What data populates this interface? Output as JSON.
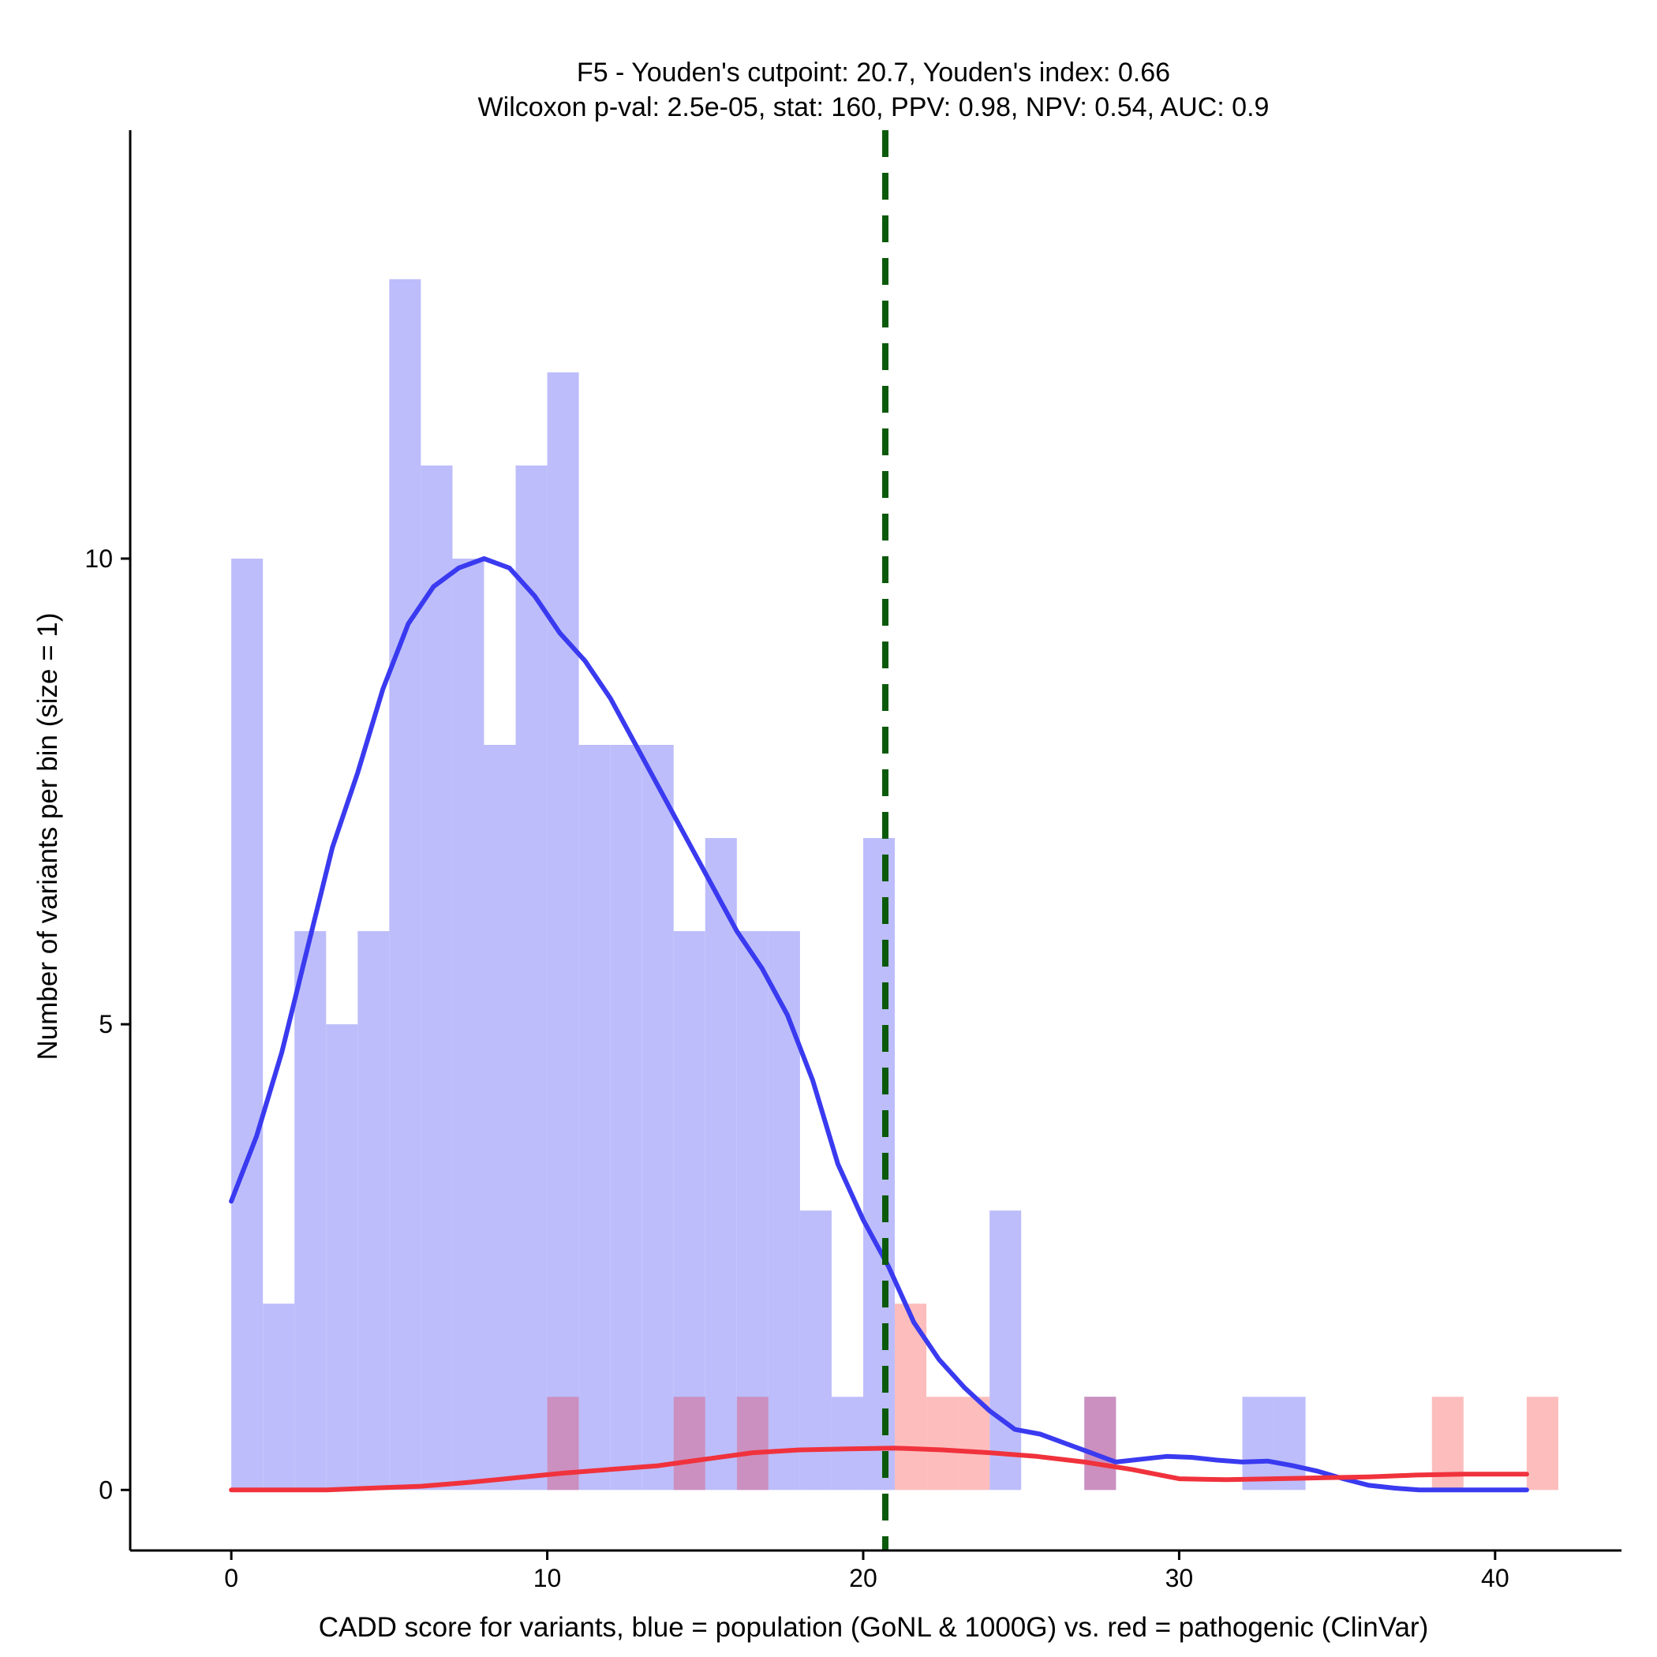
{
  "chart_data": {
    "type": "histogram",
    "title_line1": "F5 - Youden's cutpoint: 20.7, Youden's index: 0.66",
    "title_line2": "Wilcoxon p-val: 2.5e-05, stat: 160, PPV: 0.98, NPV: 0.54, AUC: 0.9",
    "xlabel": "CADD score for variants, blue = population (GoNL & 1000G) vs. red = pathogenic (ClinVar)",
    "ylabel": "Number of variants per bin (size = 1)",
    "xlim": [
      -3.2,
      44
    ],
    "ylim": [
      -0.65,
      14.6
    ],
    "xticks": [
      0,
      10,
      20,
      30,
      40
    ],
    "yticks": [
      0,
      5,
      10
    ],
    "bin_size": 1,
    "cutpoint": 20.7,
    "colors": {
      "population_fill": "#bdbdfb",
      "pathogenic_fill": "#fdbdbd",
      "overlap_fill": "#cb90c0",
      "population_kde": "#3a3af0",
      "pathogenic_kde": "#f0323c",
      "cutpoint_line": "#0b5a0b"
    },
    "series": [
      {
        "name": "population",
        "bin_starts": [
          0,
          1,
          2,
          3,
          4,
          5,
          6,
          7,
          8,
          9,
          10,
          11,
          12,
          13,
          14,
          15,
          16,
          17,
          18,
          19,
          20,
          24,
          27,
          32,
          33
        ],
        "values": [
          10,
          2,
          6,
          5,
          6,
          13,
          11,
          10,
          8,
          11,
          12,
          8,
          8,
          8,
          6,
          7,
          6,
          6,
          3,
          1,
          7,
          3,
          1,
          1,
          1
        ]
      },
      {
        "name": "pathogenic",
        "bin_starts": [
          10,
          14,
          16,
          21,
          22,
          23,
          27,
          38,
          41
        ],
        "values": [
          1,
          1,
          1,
          2,
          1,
          1,
          1,
          1,
          1
        ]
      }
    ],
    "kde": [
      {
        "name": "population",
        "x": [
          0,
          0.8,
          1.6,
          2.4,
          3.2,
          4,
          4.8,
          5.6,
          6.4,
          7.2,
          8,
          8.8,
          9.6,
          10.4,
          11.2,
          12,
          12.8,
          13.6,
          14.4,
          15.2,
          16,
          16.8,
          17.6,
          18.4,
          19.2,
          20,
          20.8,
          21.6,
          22.4,
          23.2,
          24,
          24.8,
          25.6,
          26.4,
          27.2,
          28,
          28.8,
          29.6,
          30.4,
          31.2,
          32,
          32.8,
          33.6,
          34.4,
          35.2,
          36,
          36.8,
          37.6,
          38.4,
          39.2,
          40,
          41
        ],
        "y": [
          3.1,
          3.8,
          4.7,
          5.8,
          6.9,
          7.7,
          8.6,
          9.3,
          9.7,
          9.9,
          10.0,
          9.9,
          9.6,
          9.2,
          8.9,
          8.5,
          8.0,
          7.5,
          7.0,
          6.5,
          6.0,
          5.6,
          5.1,
          4.4,
          3.5,
          2.9,
          2.4,
          1.8,
          1.4,
          1.1,
          0.85,
          0.65,
          0.6,
          0.5,
          0.4,
          0.3,
          0.33,
          0.36,
          0.35,
          0.32,
          0.3,
          0.31,
          0.26,
          0.2,
          0.12,
          0.05,
          0.02,
          0,
          0,
          0,
          0,
          0
        ]
      },
      {
        "name": "pathogenic",
        "x": [
          0,
          1.5,
          3,
          4.5,
          6,
          7.5,
          9,
          10.5,
          12,
          13.5,
          15,
          16.5,
          18,
          19.5,
          21,
          22.5,
          24,
          25.5,
          27,
          28.5,
          30,
          31.5,
          33,
          34.5,
          36,
          37.5,
          39,
          41
        ],
        "y": [
          0,
          0,
          0,
          0.02,
          0.04,
          0.08,
          0.13,
          0.18,
          0.22,
          0.26,
          0.33,
          0.4,
          0.43,
          0.44,
          0.45,
          0.43,
          0.4,
          0.36,
          0.3,
          0.22,
          0.12,
          0.11,
          0.12,
          0.13,
          0.14,
          0.16,
          0.17,
          0.17
        ]
      }
    ]
  }
}
